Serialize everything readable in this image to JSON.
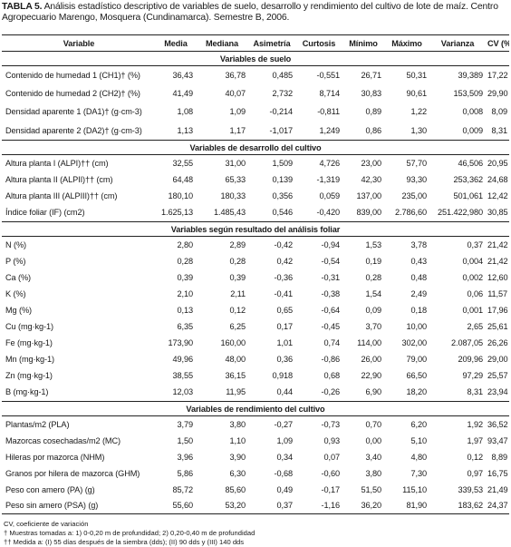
{
  "caption": {
    "label": "TABLA 5.",
    "text": "Análisis estadístico descriptivo de variables de suelo, desarrollo y rendimiento del cultivo de lote de maíz. Centro Agropecuario Marengo, Mosquera (Cundinamarca). Semestre B, 2006."
  },
  "headers": [
    "Variable",
    "Media",
    "Mediana",
    "Asimetría",
    "Curtosis",
    "Mínimo",
    "Máximo",
    "Varianza",
    "CV (%)"
  ],
  "sections": [
    {
      "title": "Variables de suelo",
      "rows": [
        {
          "label": "Contenido de humedad 1 (CH1)† (%)",
          "values": [
            "36,43",
            "36,78",
            "0,485",
            "-0,551",
            "26,71",
            "50,31",
            "39,389",
            "17,22"
          ]
        },
        {
          "label": "Contenido de humedad 2 (CH2)† (%)",
          "values": [
            "41,49",
            "40,07",
            "2,732",
            "8,714",
            "30,83",
            "90,61",
            "153,509",
            "29,90"
          ]
        },
        {
          "label": "Densidad aparente 1 (DA1)† (g·cm-3)",
          "values": [
            "1,08",
            "1,09",
            "-0,214",
            "-0,811",
            "0,89",
            "1,22",
            "0,008",
            "8,09"
          ]
        },
        {
          "label": "Densidad aparente 2 (DA2)† (g·cm-3)",
          "values": [
            "1,13",
            "1,17",
            "-1,017",
            "1,249",
            "0,86",
            "1,30",
            "0,009",
            "8,31"
          ]
        }
      ]
    },
    {
      "title": "Variables de desarrollo del cultivo",
      "rows": [
        {
          "label": "Altura planta I (ALPI)†† (cm)",
          "values": [
            "32,55",
            "31,00",
            "1,509",
            "4,726",
            "23,00",
            "57,70",
            "46,506",
            "20,95"
          ]
        },
        {
          "label": "Altura planta II (ALPII)†† (cm)",
          "values": [
            "64,48",
            "65,33",
            "0,139",
            "-1,319",
            "42,30",
            "93,30",
            "253,362",
            "24,68"
          ]
        },
        {
          "label": "Altura planta III (ALPIII)†† (cm)",
          "values": [
            "180,10",
            "180,33",
            "0,356",
            "0,059",
            "137,00",
            "235,00",
            "501,061",
            "12,42"
          ]
        },
        {
          "label": "Índice foliar (IF) (cm2)",
          "values": [
            "1.625,13",
            "1.485,43",
            "0,546",
            "-0,420",
            "839,00",
            "2.786,60",
            "251.422,980",
            "30,85"
          ]
        }
      ]
    },
    {
      "title": "Variables según resultado del análisis foliar",
      "rows": [
        {
          "label": "N (%)",
          "values": [
            "2,80",
            "2,89",
            "-0,42",
            "-0,94",
            "1,53",
            "3,78",
            "0,37",
            "21,42"
          ]
        },
        {
          "label": "P (%)",
          "values": [
            "0,28",
            "0,28",
            "0,42",
            "-0,54",
            "0,19",
            "0,43",
            "0,004",
            "21,42"
          ]
        },
        {
          "label": "Ca (%)",
          "values": [
            "0,39",
            "0,39",
            "-0,36",
            "-0,31",
            "0,28",
            "0,48",
            "0,002",
            "12,60"
          ]
        },
        {
          "label": "K (%)",
          "values": [
            "2,10",
            "2,11",
            "-0,41",
            "-0,38",
            "1,54",
            "2,49",
            "0,06",
            "11,57"
          ]
        },
        {
          "label": "Mg (%)",
          "values": [
            "0,13",
            "0,12",
            "0,65",
            "-0,64",
            "0,09",
            "0,18",
            "0,001",
            "17,96"
          ]
        },
        {
          "label": "Cu (mg·kg-1)",
          "values": [
            "6,35",
            "6,25",
            "0,17",
            "-0,45",
            "3,70",
            "10,00",
            "2,65",
            "25,61"
          ]
        },
        {
          "label": "Fe (mg·kg-1)",
          "values": [
            "173,90",
            "160,00",
            "1,01",
            "0,74",
            "114,00",
            "302,00",
            "2.087,05",
            "26,26"
          ]
        },
        {
          "label": "Mn (mg·kg-1)",
          "values": [
            "49,96",
            "48,00",
            "0,36",
            "-0,86",
            "26,00",
            "79,00",
            "209,96",
            "29,00"
          ]
        },
        {
          "label": "Zn (mg·kg-1)",
          "values": [
            "38,55",
            "36,15",
            "0,918",
            "0,68",
            "22,90",
            "66,50",
            "97,29",
            "25,57"
          ]
        },
        {
          "label": "B (mg·kg-1)",
          "values": [
            "12,03",
            "11,95",
            "0,44",
            "-0,26",
            "6,90",
            "18,20",
            "8,31",
            "23,94"
          ]
        }
      ]
    },
    {
      "title": "Variables de rendimiento del cultivo",
      "rows": [
        {
          "label": "Plantas/m2 (PLA)",
          "values": [
            "3,79",
            "3,80",
            "-0,27",
            "-0,73",
            "0,70",
            "6,20",
            "1,92",
            "36,52"
          ]
        },
        {
          "label": "Mazorcas cosechadas/m2 (MC)",
          "values": [
            "1,50",
            "1,10",
            "1,09",
            "0,93",
            "0,00",
            "5,10",
            "1,97",
            "93,47"
          ]
        },
        {
          "label": "Hileras por mazorca (NHM)",
          "values": [
            "3,96",
            "3,90",
            "0,34",
            "0,07",
            "3,40",
            "4,80",
            "0,12",
            "8,89"
          ]
        },
        {
          "label": "Granos  por hilera de mazorca (GHM)",
          "values": [
            "5,86",
            "6,30",
            "-0,68",
            "-0,60",
            "3,80",
            "7,30",
            "0,97",
            "16,75"
          ]
        },
        {
          "label": "Peso con amero (PA) (g)",
          "values": [
            "85,72",
            "85,60",
            "0,49",
            "-0,17",
            "51,50",
            "115,10",
            "339,53",
            "21,49"
          ]
        },
        {
          "label": "Peso sin amero (PSA) (g)",
          "values": [
            "55,60",
            "53,20",
            "0,37",
            "-1,16",
            "36,20",
            "81,90",
            "183,62",
            "24,37"
          ]
        }
      ]
    }
  ],
  "footnotes": [
    "CV, coeficiente de variación",
    "† Muestras tomadas a: 1) 0-0,20 m de profundidad; 2) 0,20-0,40 m de profundidad",
    "†† Medida a: (I) 55 días después de la siembra (dds); (II) 90 dds y (III) 140 dds"
  ]
}
